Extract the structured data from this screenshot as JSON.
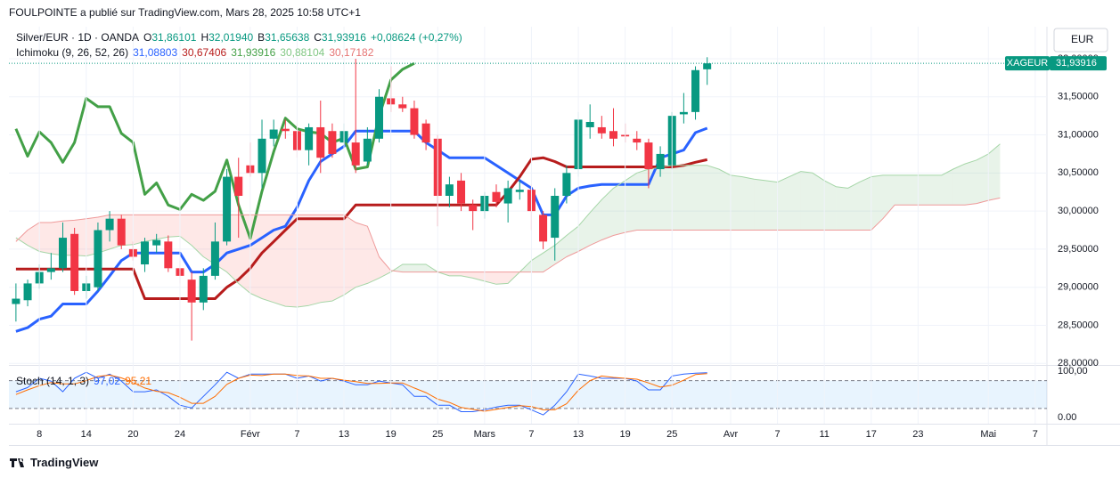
{
  "header": "FOULPOINTE a publié sur TradingView.com, Mars 28, 2025 10:58 UTC+1",
  "footer": "TradingView",
  "chart_data": {
    "type": "candlestick",
    "title": "Silver/EUR · 1D · OANDA",
    "legend_ohlc": [
      {
        "label": "O",
        "value": "31,86101"
      },
      {
        "label": "H",
        "value": "32,01940"
      },
      {
        "label": "B",
        "value": "31,65638"
      },
      {
        "label": "C",
        "value": "31,93916"
      }
    ],
    "change": "+0,08624 (+0,27%)",
    "currency": "EUR",
    "price_tag": {
      "symbol": "XAGEUR",
      "value": "31,93916"
    },
    "grid": true,
    "xlim": [
      -0.6,
      88.0
    ],
    "xticks": [
      {
        "value": 2,
        "label": "8"
      },
      {
        "value": 6,
        "label": "14"
      },
      {
        "value": 10,
        "label": "20"
      },
      {
        "value": 14,
        "label": "24"
      },
      {
        "value": 20,
        "label": "Févr"
      },
      {
        "value": 24,
        "label": "7"
      },
      {
        "value": 28,
        "label": "13"
      },
      {
        "value": 32,
        "label": "19"
      },
      {
        "value": 36,
        "label": "25"
      },
      {
        "value": 40,
        "label": "Mars"
      },
      {
        "value": 44,
        "label": "7"
      },
      {
        "value": 48,
        "label": "13"
      },
      {
        "value": 52,
        "label": "19"
      },
      {
        "value": 56,
        "label": "25"
      },
      {
        "value": 61,
        "label": "Avr"
      },
      {
        "value": 65,
        "label": "7"
      },
      {
        "value": 69,
        "label": "11"
      },
      {
        "value": 73,
        "label": "17"
      },
      {
        "value": 77,
        "label": "23"
      },
      {
        "value": 83,
        "label": "Mai"
      },
      {
        "value": 87,
        "label": "7"
      }
    ],
    "ylim": [
      27.98,
      32.42
    ],
    "yticks": [
      {
        "value": 28,
        "label": "28,00000"
      },
      {
        "value": 28.5,
        "label": "28,50000"
      },
      {
        "value": 29,
        "label": "29,00000"
      },
      {
        "value": 29.5,
        "label": "29,50000"
      },
      {
        "value": 30,
        "label": "30,00000"
      },
      {
        "value": 30.5,
        "label": "30,50000"
      },
      {
        "value": 31,
        "label": "31,00000"
      },
      {
        "value": 31.5,
        "label": "31,50000"
      },
      {
        "value": 32,
        "label": "32,00000"
      }
    ],
    "candles": {
      "up_color": "#089981",
      "down_color": "#f23645",
      "x": [
        0,
        1,
        2,
        3,
        4,
        5,
        6,
        7,
        8,
        9,
        10,
        11,
        12,
        13,
        14,
        15,
        16,
        17,
        18,
        19,
        20,
        21,
        22,
        23,
        24,
        25,
        26,
        27,
        28,
        29,
        30,
        31,
        32,
        33,
        34,
        35,
        36,
        37,
        38,
        39,
        40,
        41,
        42,
        43,
        44,
        45,
        46,
        47,
        48,
        49,
        50,
        51,
        52,
        53,
        54,
        55,
        56,
        57,
        58,
        59
      ],
      "open": [
        28.78,
        28.83,
        29.05,
        29.2,
        29.25,
        29.7,
        28.95,
        29.0,
        29.75,
        29.9,
        29.5,
        29.3,
        29.55,
        29.6,
        29.25,
        29.1,
        28.8,
        29.15,
        29.6,
        30.45,
        30.6,
        30.5,
        30.95,
        31.08,
        31.05,
        30.8,
        31.1,
        31.05,
        30.9,
        30.9,
        30.65,
        30.95,
        31.48,
        31.4,
        31.35,
        31.15,
        30.95,
        30.2,
        30.4,
        30.08,
        30.0,
        30.25,
        30.1,
        30.25,
        30.28,
        29.95,
        29.65,
        30.2,
        30.55,
        31.1,
        31.1,
        31.05,
        31.0,
        30.95,
        30.9,
        30.55,
        30.6,
        31.27,
        31.3,
        31.86101
      ],
      "high": [
        29.05,
        29.1,
        29.3,
        29.45,
        29.85,
        29.78,
        29.15,
        29.85,
        30.0,
        29.95,
        29.6,
        29.65,
        29.7,
        29.68,
        29.35,
        29.2,
        29.25,
        29.85,
        30.55,
        30.7,
        30.9,
        31.2,
        31.2,
        31.2,
        31.15,
        31.15,
        31.45,
        31.15,
        31.15,
        32.0,
        31.1,
        31.6,
        31.9,
        31.5,
        31.45,
        31.2,
        31.0,
        30.45,
        30.5,
        30.15,
        30.25,
        30.35,
        30.4,
        30.4,
        30.35,
        30.0,
        30.3,
        30.6,
        31.3,
        31.4,
        31.25,
        31.35,
        31.15,
        31.05,
        30.95,
        30.85,
        31.3,
        31.55,
        31.9,
        32.0194
      ],
      "low": [
        28.55,
        28.75,
        28.98,
        29.1,
        29.2,
        28.9,
        28.85,
        28.95,
        29.6,
        29.5,
        29.35,
        29.2,
        29.45,
        29.2,
        29.05,
        28.3,
        28.7,
        29.1,
        29.55,
        29.65,
        30.45,
        30.3,
        30.85,
        30.95,
        30.7,
        30.6,
        30.5,
        30.7,
        30.85,
        30.5,
        30.6,
        30.9,
        31.3,
        31.3,
        30.95,
        30.8,
        29.8,
        30.05,
        30.0,
        29.75,
        29.9,
        30.05,
        29.85,
        30.15,
        29.75,
        29.5,
        29.35,
        30.1,
        30.45,
        30.95,
        30.95,
        30.85,
        30.9,
        30.8,
        30.3,
        30.45,
        30.55,
        31.15,
        31.2,
        31.65638
      ],
      "close": [
        28.85,
        29.05,
        29.2,
        29.25,
        29.65,
        28.95,
        29.05,
        29.75,
        29.9,
        29.55,
        29.4,
        29.6,
        29.62,
        29.25,
        29.15,
        28.8,
        29.15,
        29.6,
        30.45,
        30.2,
        30.5,
        30.95,
        31.07,
        31.05,
        30.8,
        31.1,
        30.7,
        30.75,
        31.05,
        30.6,
        30.95,
        31.5,
        31.4,
        31.35,
        31.0,
        30.9,
        30.2,
        30.35,
        30.1,
        30.0,
        30.2,
        30.12,
        30.3,
        30.28,
        30.0,
        29.6,
        30.2,
        30.5,
        31.2,
        31.17,
        31.02,
        30.95,
        30.98,
        30.9,
        30.55,
        30.75,
        31.25,
        31.3,
        31.85,
        31.93916
      ]
    },
    "ichimoku": {
      "name": "Ichimoku (9, 26, 52, 26)",
      "x": [
        0,
        1,
        2,
        3,
        4,
        5,
        6,
        7,
        8,
        9,
        10,
        11,
        12,
        13,
        14,
        15,
        16,
        17,
        18,
        19,
        20,
        21,
        22,
        23,
        24,
        25,
        26,
        27,
        28,
        29,
        30,
        31,
        32,
        33,
        34,
        35,
        36,
        37,
        38,
        39,
        40,
        41,
        42,
        43,
        44,
        45,
        46,
        47,
        48,
        49,
        50,
        51,
        52,
        53,
        54,
        55,
        56,
        57,
        58,
        59,
        60,
        61,
        62,
        63,
        64,
        65,
        66,
        67,
        68,
        69,
        70,
        71,
        72,
        73,
        74,
        75,
        76,
        77,
        78,
        79,
        80,
        81,
        82,
        83,
        84
      ],
      "cloud_up_color": "rgba(67,160,71,0.12)",
      "cloud_down_color": "rgba(244,67,54,0.12)",
      "series": [
        {
          "label": "31,08803",
          "color": "#2962ff",
          "width": 3,
          "values": [
            28.42,
            28.47,
            28.58,
            28.62,
            28.78,
            28.78,
            28.78,
            28.95,
            29.15,
            29.35,
            29.45,
            29.45,
            29.45,
            29.45,
            29.45,
            29.2,
            29.2,
            29.3,
            29.45,
            29.5,
            29.55,
            29.65,
            29.75,
            29.8,
            30.05,
            30.4,
            30.65,
            30.75,
            30.85,
            31.05,
            31.05,
            31.05,
            31.05,
            31.05,
            31.05,
            30.9,
            30.8,
            30.7,
            30.7,
            30.7,
            30.7,
            30.6,
            30.5,
            30.4,
            30.3,
            29.95,
            29.95,
            30.2,
            30.3,
            30.33,
            30.35,
            30.35,
            30.35,
            30.35,
            30.35,
            30.7,
            30.75,
            30.8,
            31.03,
            31.08803,
            null,
            null,
            null,
            null,
            null,
            null,
            null,
            null,
            null,
            null,
            null,
            null,
            null,
            null,
            null,
            null,
            null,
            null,
            null,
            null,
            null,
            null,
            null,
            null,
            null
          ]
        },
        {
          "label": "30,67406",
          "color": "#b71c1c",
          "width": 3,
          "values": [
            29.24,
            29.24,
            29.24,
            29.24,
            29.24,
            29.24,
            29.24,
            29.24,
            29.24,
            29.24,
            29.24,
            28.85,
            28.85,
            28.85,
            28.85,
            28.85,
            28.85,
            28.85,
            29.0,
            29.1,
            29.25,
            29.45,
            29.6,
            29.75,
            29.9,
            29.9,
            29.9,
            29.9,
            29.9,
            30.08,
            30.08,
            30.08,
            30.08,
            30.08,
            30.08,
            30.08,
            30.08,
            30.08,
            30.08,
            30.08,
            30.08,
            30.08,
            30.25,
            30.45,
            30.68,
            30.7,
            30.65,
            30.58,
            30.58,
            30.58,
            30.58,
            30.58,
            30.58,
            30.58,
            30.58,
            30.58,
            30.58,
            30.6,
            30.64,
            30.67406,
            null,
            null,
            null,
            null,
            null,
            null,
            null,
            null,
            null,
            null,
            null,
            null,
            null,
            null,
            null,
            null,
            null,
            null,
            null,
            null,
            null,
            null,
            null,
            null,
            null
          ]
        },
        {
          "label": "31,93916",
          "color": "#43a047",
          "width": 3,
          "values": [
            31.08,
            30.72,
            31.04,
            30.9,
            30.64,
            30.9,
            31.48,
            31.37,
            31.37,
            31.02,
            30.9,
            30.22,
            30.37,
            30.08,
            30.02,
            30.22,
            30.14,
            30.26,
            30.67,
            30.08,
            29.64,
            30.26,
            30.78,
            31.22,
            31.08,
            31.04,
            31.02,
            30.9,
            30.96,
            30.55,
            30.58,
            31.25,
            31.72,
            31.86,
            31.93916,
            null,
            null,
            null,
            null,
            null,
            null,
            null,
            null,
            null,
            null,
            null,
            null,
            null,
            null,
            null,
            null,
            null,
            null,
            null,
            null,
            null,
            null,
            null,
            null,
            null,
            null,
            null,
            null,
            null,
            null,
            null,
            null,
            null,
            null,
            null,
            null,
            null,
            null,
            null,
            null,
            null,
            null,
            null,
            null,
            null,
            null,
            null,
            null,
            null,
            null
          ]
        },
        {
          "label": "30,88104",
          "color": "#a5d6a7",
          "width": 1,
          "role": "span_a",
          "values": [
            29.65,
            29.55,
            29.47,
            29.44,
            29.42,
            29.42,
            29.41,
            29.45,
            29.5,
            29.55,
            29.56,
            29.6,
            29.63,
            29.66,
            29.67,
            29.55,
            29.4,
            29.3,
            29.2,
            29.05,
            28.92,
            28.85,
            28.8,
            28.75,
            28.74,
            28.76,
            28.8,
            28.82,
            28.9,
            29.0,
            29.05,
            29.12,
            29.2,
            29.3,
            29.3,
            29.3,
            29.2,
            29.15,
            29.15,
            29.12,
            29.08,
            29.04,
            29.05,
            29.2,
            29.35,
            29.45,
            29.55,
            29.68,
            29.8,
            29.98,
            30.15,
            30.3,
            30.4,
            30.5,
            30.55,
            30.57,
            30.6,
            30.6,
            30.6,
            30.6,
            30.55,
            30.47,
            30.45,
            30.42,
            30.4,
            30.38,
            30.45,
            30.52,
            30.5,
            30.4,
            30.32,
            30.3,
            30.38,
            30.45,
            30.47,
            30.47,
            30.47,
            30.47,
            30.47,
            30.47,
            30.55,
            30.62,
            30.67,
            30.75,
            30.88104
          ]
        },
        {
          "label": "30,17182",
          "color": "#ef9a9a",
          "width": 1,
          "role": "span_b",
          "values": [
            29.6,
            29.75,
            29.85,
            29.85,
            29.87,
            29.88,
            29.9,
            29.92,
            29.95,
            29.95,
            29.95,
            29.95,
            29.95,
            29.95,
            29.95,
            29.95,
            29.95,
            29.95,
            29.95,
            29.95,
            29.95,
            29.95,
            29.95,
            29.95,
            29.95,
            29.95,
            29.95,
            29.95,
            29.95,
            29.85,
            29.8,
            29.4,
            29.22,
            29.2,
            29.2,
            29.2,
            29.2,
            29.2,
            29.2,
            29.2,
            29.2,
            29.2,
            29.2,
            29.2,
            29.2,
            29.2,
            29.3,
            29.4,
            29.47,
            29.55,
            29.62,
            29.68,
            29.72,
            29.75,
            29.75,
            29.75,
            29.75,
            29.75,
            29.75,
            29.75,
            29.75,
            29.75,
            29.75,
            29.75,
            29.75,
            29.75,
            29.75,
            29.75,
            29.75,
            29.75,
            29.75,
            29.75,
            29.75,
            29.75,
            29.9,
            30.08,
            30.08,
            30.08,
            30.08,
            30.08,
            30.08,
            30.08,
            30.1,
            30.14,
            30.17182
          ]
        }
      ]
    },
    "stoch": {
      "name": "Stoch (14, 1, 3)",
      "ylim": [
        -13,
        110
      ],
      "yticks": [
        {
          "value": 100,
          "label": "100,00"
        },
        {
          "value": 0,
          "label": "0.00"
        }
      ],
      "bands": [
        20,
        80
      ],
      "band_color": "rgba(33,150,243,0.1)",
      "series": [
        {
          "label": "97,02",
          "color": "#2962ff",
          "values": [
            56,
            65,
            85,
            79,
            56,
            85,
            98,
            85,
            94,
            79,
            56,
            56,
            60,
            46,
            27,
            21,
            46,
            71,
            98,
            85,
            94,
            94,
            94,
            94,
            85,
            90,
            79,
            85,
            79,
            71,
            71,
            79,
            75,
            71,
            46,
            46,
            27,
            27,
            13,
            13,
            17,
            23,
            27,
            27,
            17,
            6,
            27,
            56,
            94,
            90,
            85,
            85,
            85,
            79,
            60,
            60,
            90,
            94,
            96,
            97.02
          ]
        },
        {
          "label": "95,21",
          "color": "#ff6d00",
          "values": [
            50,
            60,
            69,
            76,
            73,
            73,
            80,
            89,
            92,
            86,
            76,
            64,
            57,
            54,
            44,
            31,
            31,
            46,
            72,
            85,
            92,
            91,
            94,
            94,
            91,
            90,
            85,
            85,
            81,
            78,
            74,
            74,
            75,
            75,
            64,
            54,
            40,
            33,
            22,
            18,
            14,
            18,
            22,
            26,
            24,
            17,
            17,
            30,
            59,
            80,
            90,
            87,
            85,
            83,
            75,
            66,
            70,
            81,
            93,
            95.21
          ]
        }
      ]
    }
  }
}
